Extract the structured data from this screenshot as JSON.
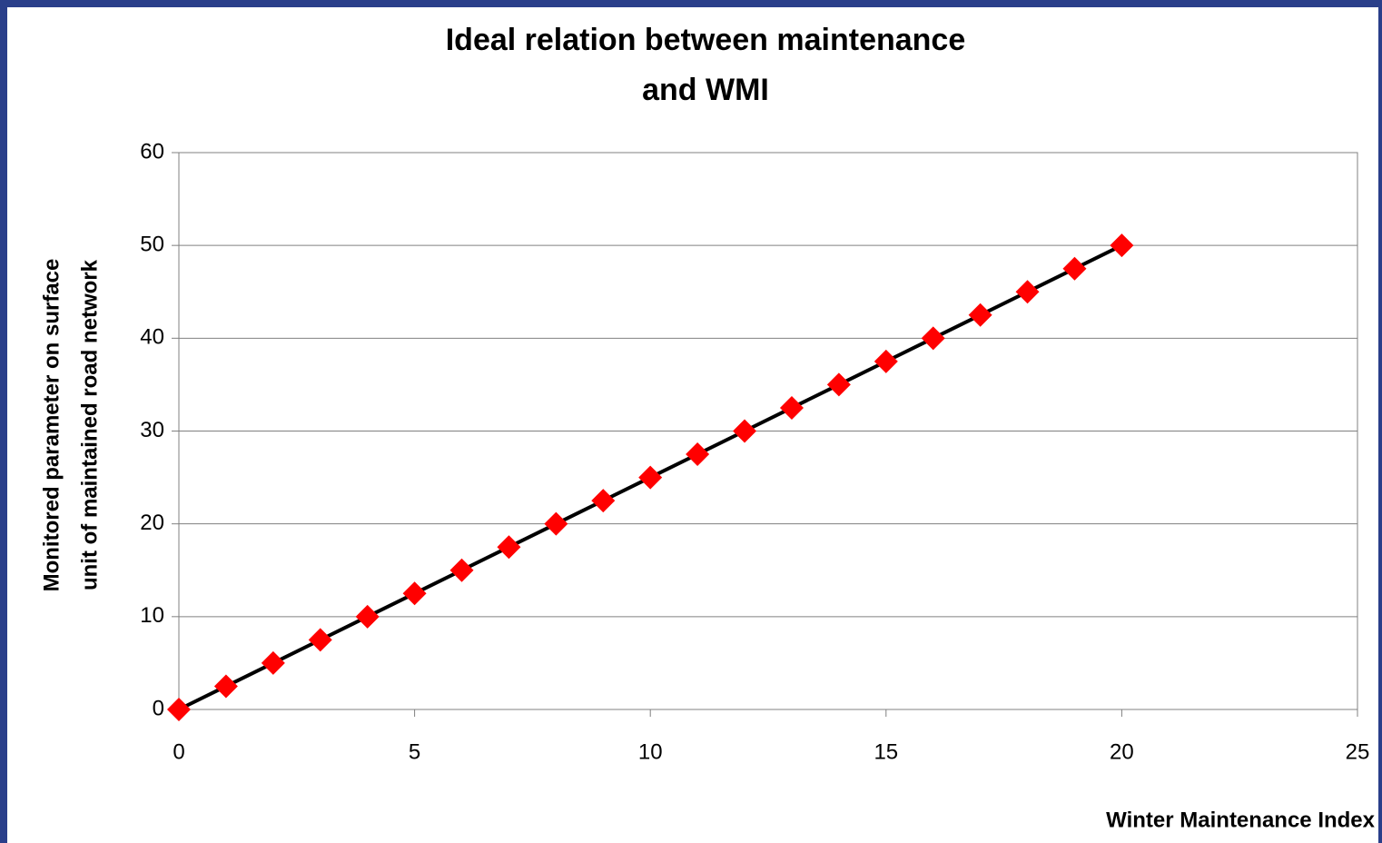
{
  "chart_data": {
    "type": "scatter",
    "title": [
      "Ideal relation between maintenance",
      "and WMI"
    ],
    "x_label": "Winter Maintenance Index",
    "y_label": [
      "Monitored parameter on surface",
      "unit of maintained road network"
    ],
    "series": [
      {
        "color": "#ff0000",
        "line_color": "#000000",
        "x": [
          0,
          1,
          2,
          3,
          4,
          5,
          6,
          7,
          8,
          9,
          10,
          11,
          12,
          13,
          14,
          15,
          16,
          17,
          18,
          19,
          20
        ],
        "values": [
          0,
          2.5,
          5,
          7.5,
          10,
          12.5,
          15,
          17.5,
          20,
          22.5,
          25,
          27.5,
          30,
          32.5,
          35,
          37.5,
          40,
          42.5,
          45,
          47.5,
          50
        ]
      }
    ],
    "xlim": [
      0,
      25
    ],
    "xticks": [
      0,
      5,
      10,
      15,
      20,
      25
    ],
    "ylim": [
      0,
      60
    ],
    "yticks": [
      0,
      10,
      20,
      30,
      40,
      50,
      60
    ],
    "grid": true
  }
}
